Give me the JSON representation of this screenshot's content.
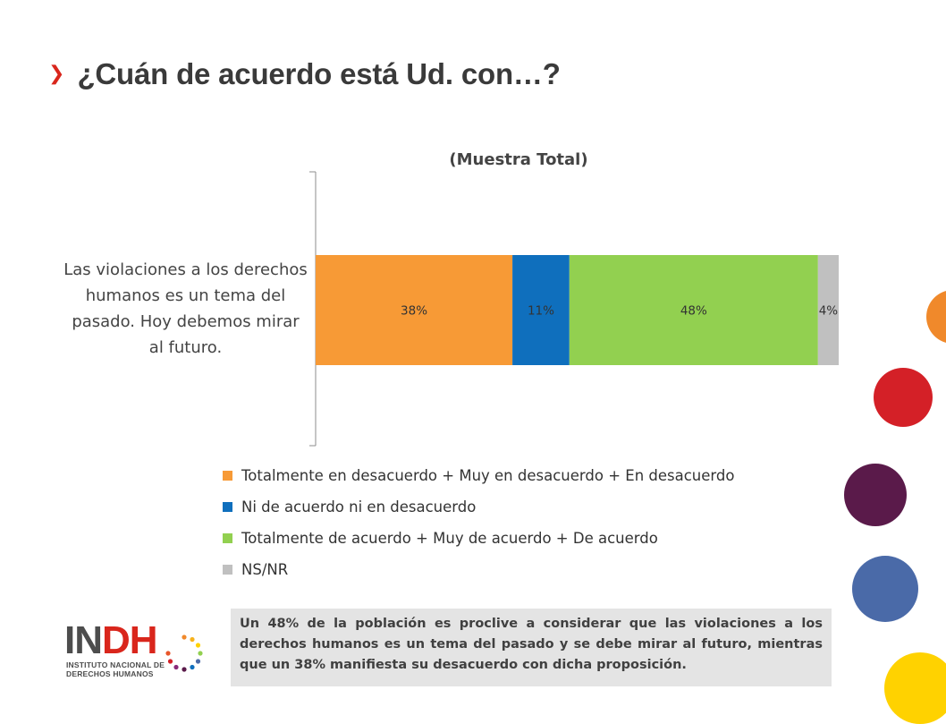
{
  "header": {
    "title": "¿Cuán de acuerdo está Ud. con…?"
  },
  "chart_data": {
    "type": "bar",
    "orientation": "horizontal",
    "stacked": true,
    "title": "(Muestra Total)",
    "categories": [
      "Las violaciones a los derechos humanos es un tema del pasado. Hoy debemos mirar al futuro."
    ],
    "series": [
      {
        "name": "Totalmente en desacuerdo + Muy en desacuerdo + En desacuerdo",
        "values": [
          38
        ],
        "label": "38%",
        "color": "#f79a36"
      },
      {
        "name": "Ni de acuerdo ni en desacuerdo",
        "values": [
          11
        ],
        "label": "11%",
        "color": "#0f6fbd"
      },
      {
        "name": "Totalmente de acuerdo + Muy de acuerdo + De acuerdo",
        "values": [
          48
        ],
        "label": "48%",
        "color": "#92d050"
      },
      {
        "name": "NS/NR",
        "values": [
          4
        ],
        "label": "4%",
        "color": "#c0c0c0"
      }
    ],
    "legend": "bottom",
    "grid": false
  },
  "footnote": "Un 48% de la población es proclive a considerar que las violaciones a los derechos humanos es un tema del pasado y se debe mirar al futuro, mientras que un 38% manifiesta su desacuerdo con dicha proposición.",
  "logo": {
    "text_in": "IN",
    "text_dh": "DH",
    "sub_line1": "INSTITUTO NACIONAL DE",
    "sub_line2": "DERECHOS HUMANOS"
  },
  "decor": {
    "circle_colors": [
      "#f0892b",
      "#d42027",
      "#5a1a4a",
      "#4a6aa8",
      "#ffd200"
    ]
  }
}
